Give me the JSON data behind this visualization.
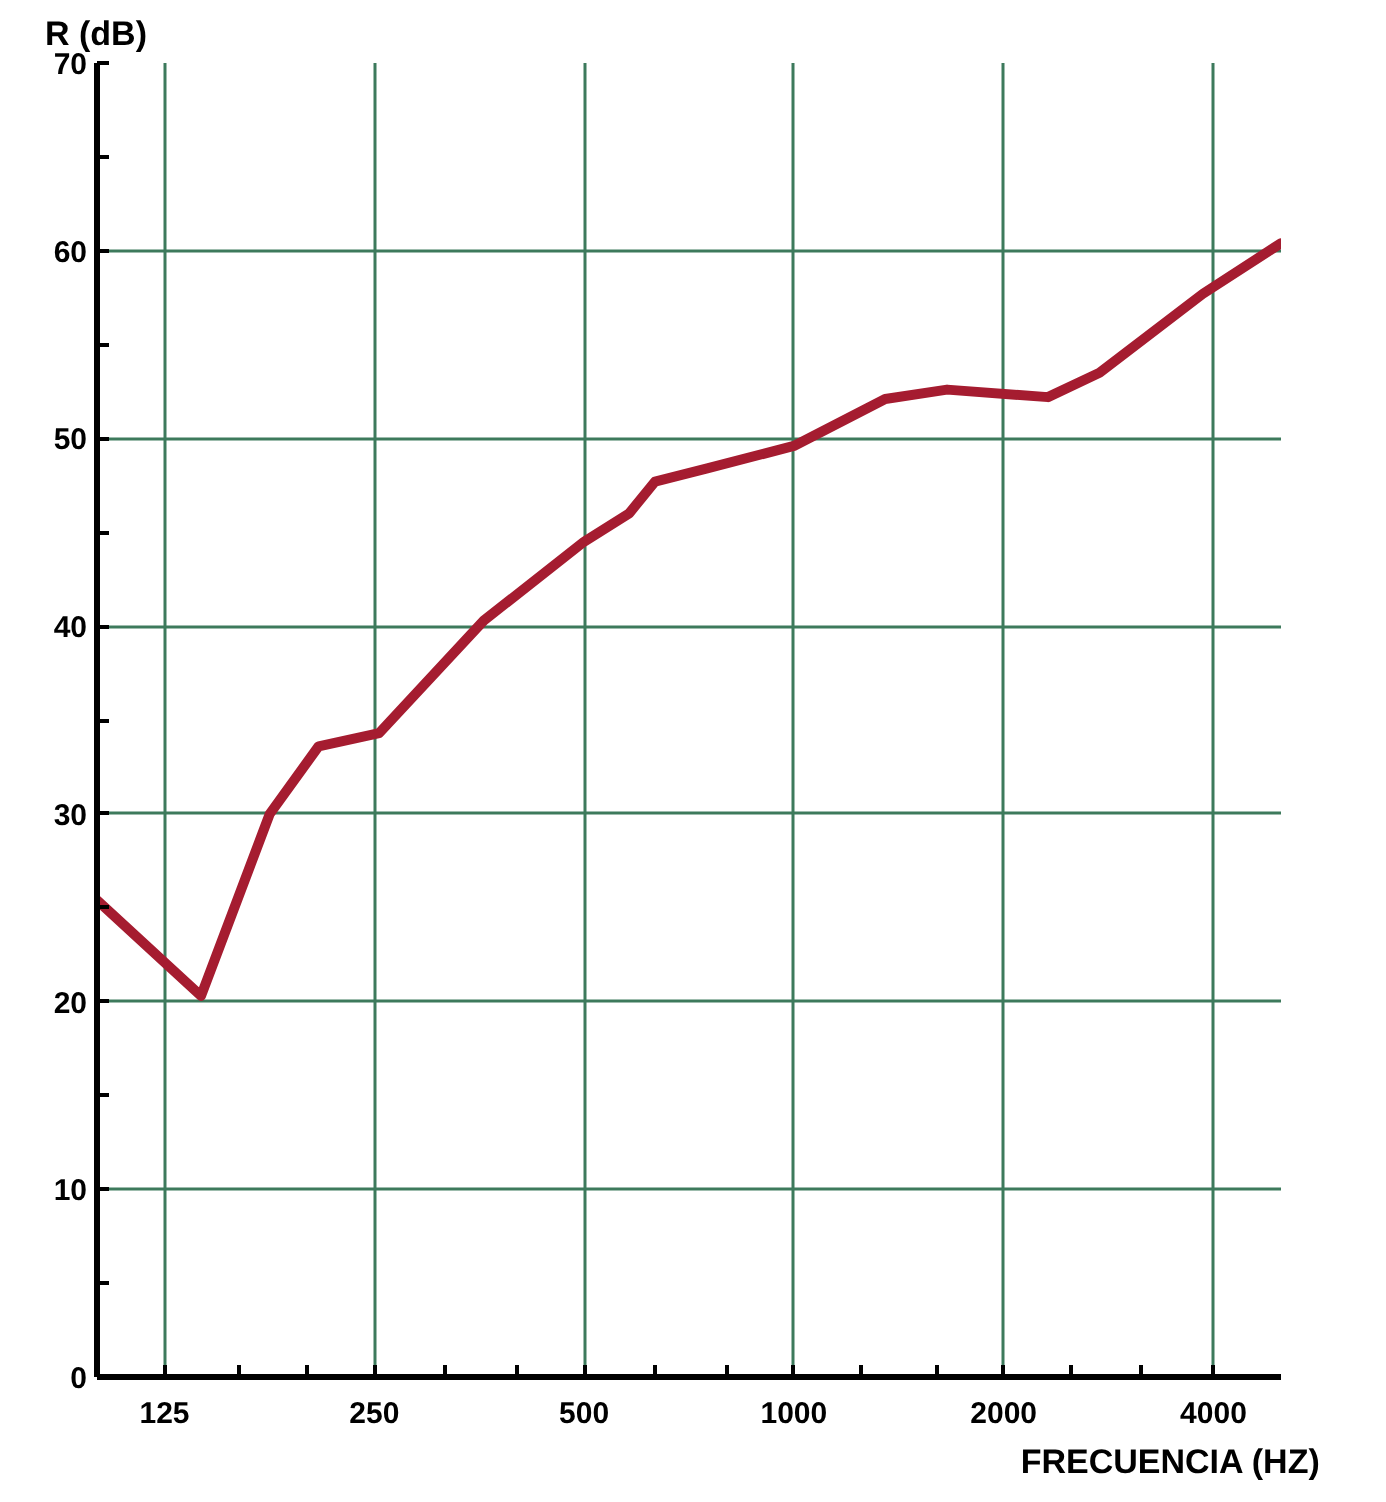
{
  "chart_data": {
    "type": "line",
    "xlabel": "FRECUENCIA (HZ)",
    "ylabel": "R (dB)",
    "x": [
      100,
      141,
      177,
      208,
      254,
      359,
      500,
      580,
      632,
      751,
      1000,
      1352,
      1659,
      2315,
      2745,
      3861,
      5000
    ],
    "series": [
      {
        "color": "#a51c30",
        "values": [
          25.4,
          20.3,
          30,
          33.6,
          34.3,
          40.3,
          44.5,
          46,
          47.7,
          48.4,
          49.6,
          52.1,
          52.6,
          52.2,
          53.5,
          57.7,
          60.4
        ]
      }
    ],
    "log": "x",
    "xlim": [
      100,
      5000
    ],
    "ylim": [
      0,
      70
    ],
    "xticks": [
      125,
      {
        "value": 160,
        "label": null
      },
      {
        "value": 200,
        "label": null
      },
      250,
      {
        "value": 315,
        "label": null
      },
      {
        "value": 400,
        "label": null
      },
      500,
      {
        "value": 630,
        "label": null
      },
      {
        "value": 800,
        "label": null
      },
      1000,
      {
        "value": 1250,
        "label": null
      },
      {
        "value": 1600,
        "label": null
      },
      2000,
      {
        "value": 2500,
        "label": null
      },
      {
        "value": 3150,
        "label": null
      },
      4000
    ],
    "yticks": [
      0,
      {
        "value": 5,
        "label": null
      },
      10,
      {
        "value": 15,
        "label": null
      },
      20,
      {
        "value": 25,
        "label": null
      },
      30,
      {
        "value": 35,
        "label": null
      },
      40,
      {
        "value": 45,
        "label": null
      },
      50,
      {
        "value": 55,
        "label": null
      },
      60,
      {
        "value": 65,
        "label": null
      },
      70
    ],
    "grid": true,
    "marker": "none",
    "line_style": "solid"
  }
}
